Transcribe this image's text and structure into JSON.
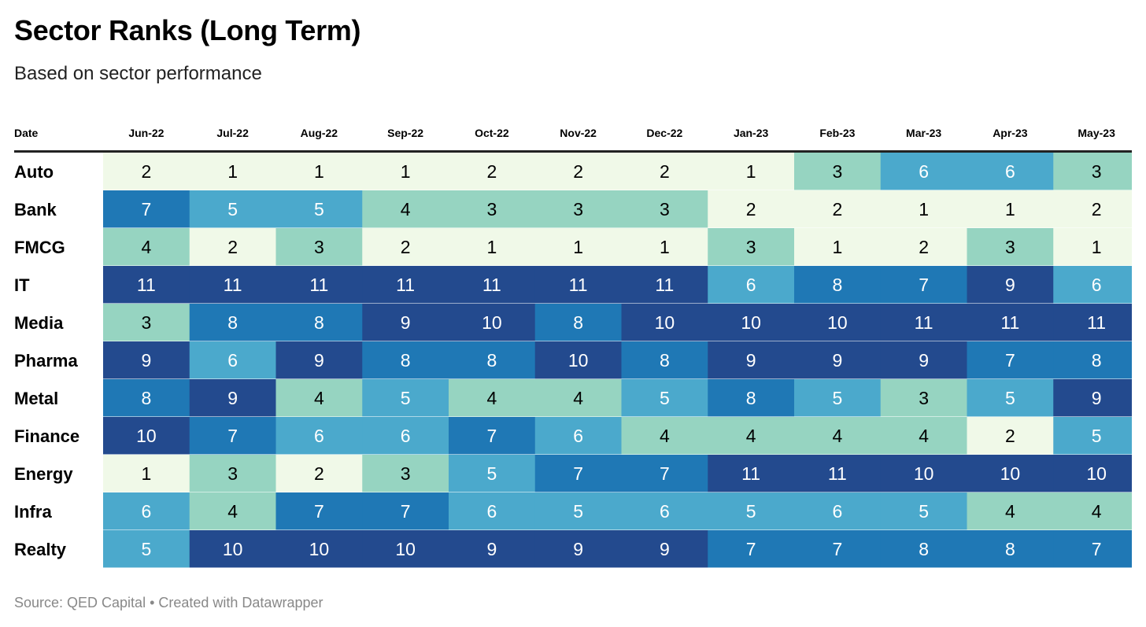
{
  "title": "Sector Ranks (Long Term)",
  "subtitle": "Based on sector performance",
  "source": "Source: QED Capital • Created with Datawrapper",
  "chart_data": {
    "type": "heatmap",
    "row_header": "Date",
    "columns": [
      "Jun-22",
      "Jul-22",
      "Aug-22",
      "Sep-22",
      "Oct-22",
      "Nov-22",
      "Dec-22",
      "Jan-23",
      "Feb-23",
      "Mar-23",
      "Apr-23",
      "May-23"
    ],
    "rows": [
      {
        "label": "Auto",
        "values": [
          2,
          1,
          1,
          1,
          2,
          2,
          2,
          1,
          3,
          6,
          6,
          3
        ]
      },
      {
        "label": "Bank",
        "values": [
          7,
          5,
          5,
          4,
          3,
          3,
          3,
          2,
          2,
          1,
          1,
          2
        ]
      },
      {
        "label": "FMCG",
        "values": [
          4,
          2,
          3,
          2,
          1,
          1,
          1,
          3,
          1,
          2,
          3,
          1
        ]
      },
      {
        "label": "IT",
        "values": [
          11,
          11,
          11,
          11,
          11,
          11,
          11,
          6,
          8,
          7,
          9,
          6
        ]
      },
      {
        "label": "Media",
        "values": [
          3,
          8,
          8,
          9,
          10,
          8,
          10,
          10,
          10,
          11,
          11,
          11
        ]
      },
      {
        "label": "Pharma",
        "values": [
          9,
          6,
          9,
          8,
          8,
          10,
          8,
          9,
          9,
          9,
          7,
          8
        ]
      },
      {
        "label": "Metal",
        "values": [
          8,
          9,
          4,
          5,
          4,
          4,
          5,
          8,
          5,
          3,
          5,
          9
        ]
      },
      {
        "label": "Finance",
        "values": [
          10,
          7,
          6,
          6,
          7,
          6,
          4,
          4,
          4,
          4,
          2,
          5
        ]
      },
      {
        "label": "Energy",
        "values": [
          1,
          3,
          2,
          3,
          5,
          7,
          7,
          11,
          11,
          10,
          10,
          10
        ]
      },
      {
        "label": "Infra",
        "values": [
          6,
          4,
          7,
          7,
          6,
          5,
          6,
          5,
          6,
          5,
          4,
          4
        ]
      },
      {
        "label": "Realty",
        "values": [
          5,
          10,
          10,
          10,
          9,
          9,
          9,
          7,
          7,
          8,
          8,
          7
        ]
      }
    ],
    "color_scale": {
      "1": "#f0f9e8",
      "2": "#f0f9e8",
      "3": "#96d4c1",
      "4": "#96d4c1",
      "5": "#4ba9cc",
      "6": "#4ba9cc",
      "7": "#1f78b5",
      "8": "#1f78b5",
      "9": "#234a8e",
      "10": "#234a8e",
      "11": "#234a8e"
    },
    "light_text_color": "#000000",
    "dark_text_color": "#ffffff"
  }
}
